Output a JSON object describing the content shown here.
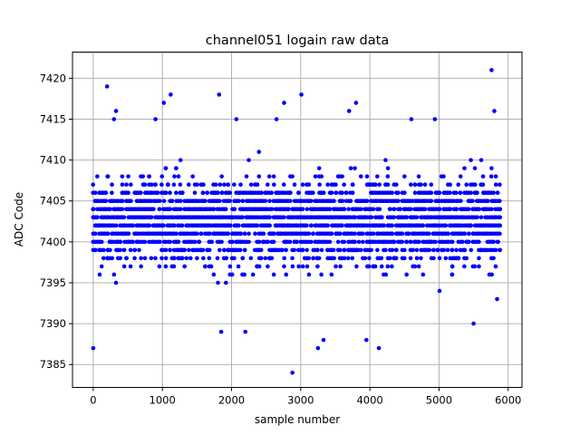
{
  "chart_data": {
    "type": "scatter",
    "title": "channel051 logain raw data",
    "xlabel": "sample number",
    "ylabel": "ADC Code",
    "xlim": [
      -300,
      6200
    ],
    "ylim": [
      7382.2,
      7423.2
    ],
    "x_ticks": [
      0,
      1000,
      2000,
      3000,
      4000,
      5000,
      6000
    ],
    "y_ticks": [
      7385,
      7390,
      7395,
      7400,
      7405,
      7410,
      7415,
      7420
    ],
    "grid": true,
    "marker_color": "#0000ff",
    "series": [
      {
        "x_range": [
          0,
          5880
        ],
        "sample_step": 30,
        "dense_range": [
          7393,
          7411
        ],
        "outliers": [
          [
            0,
            7387
          ],
          [
            200,
            7419
          ],
          [
            300,
            7415
          ],
          [
            330,
            7416
          ],
          [
            900,
            7415
          ],
          [
            1020,
            7417
          ],
          [
            1120,
            7418
          ],
          [
            1820,
            7418
          ],
          [
            1850,
            7389
          ],
          [
            2070,
            7415
          ],
          [
            2200,
            7389
          ],
          [
            2650,
            7415
          ],
          [
            2760,
            7417
          ],
          [
            2880,
            7384
          ],
          [
            3010,
            7418
          ],
          [
            3250,
            7387
          ],
          [
            3330,
            7388
          ],
          [
            3700,
            7416
          ],
          [
            3800,
            7417
          ],
          [
            3950,
            7388
          ],
          [
            4130,
            7387
          ],
          [
            4600,
            7415
          ],
          [
            4940,
            7415
          ],
          [
            5500,
            7390
          ],
          [
            5760,
            7421
          ],
          [
            5800,
            7416
          ],
          [
            5840,
            7393
          ]
        ]
      }
    ]
  }
}
